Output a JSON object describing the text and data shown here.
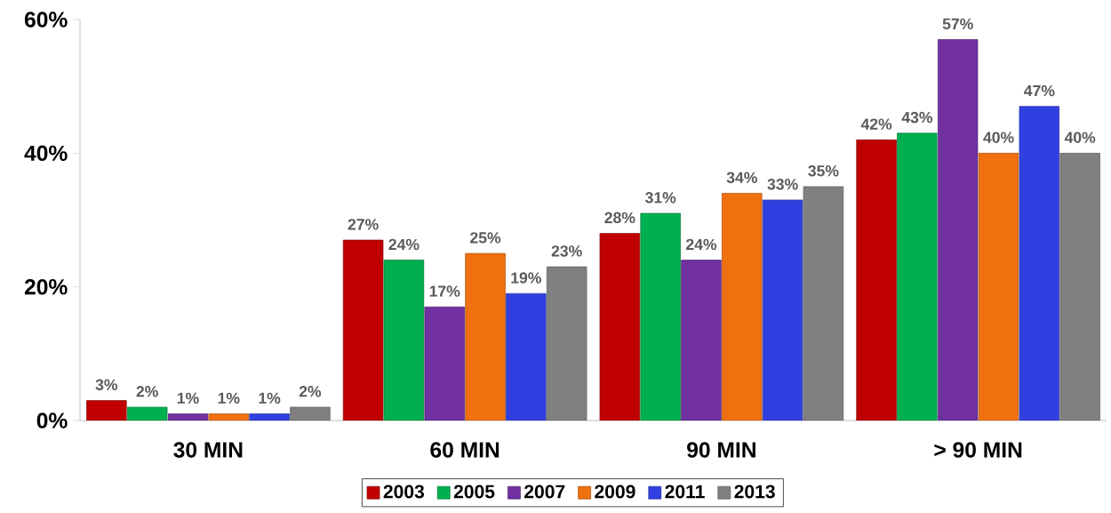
{
  "chart_data": {
    "type": "bar",
    "categories": [
      "30 MIN",
      "60 MIN",
      "90 MIN",
      "> 90 MIN"
    ],
    "series": [
      {
        "name": "2003",
        "color": "#c00000",
        "values": [
          3,
          27,
          28,
          42
        ],
        "value_labels": [
          "3%",
          "27%",
          "28%",
          "42%"
        ]
      },
      {
        "name": "2005",
        "color": "#00b050",
        "values": [
          2,
          24,
          31,
          43
        ],
        "value_labels": [
          "2%",
          "24%",
          "31%",
          "43%"
        ]
      },
      {
        "name": "2007",
        "color": "#7030a0",
        "values": [
          1,
          17,
          24,
          57
        ],
        "value_labels": [
          "1%",
          "17%",
          "24%",
          "57%"
        ]
      },
      {
        "name": "2009",
        "color": "#f07010",
        "values": [
          1,
          25,
          34,
          40
        ],
        "value_labels": [
          "1%",
          "25%",
          "34%",
          "40%"
        ]
      },
      {
        "name": "2011",
        "color": "#3040e0",
        "values": [
          1,
          19,
          33,
          47
        ],
        "value_labels": [
          "1%",
          "19%",
          "33%",
          "47%"
        ]
      },
      {
        "name": "2013",
        "color": "#808080",
        "values": [
          2,
          23,
          35,
          40
        ],
        "value_labels": [
          "2%",
          "23%",
          "35%",
          "40%"
        ]
      }
    ],
    "ylim": [
      0,
      60
    ],
    "yticks": [
      {
        "value": 0,
        "label": "0%"
      },
      {
        "value": 20,
        "label": "20%"
      },
      {
        "value": 40,
        "label": "40%"
      },
      {
        "value": 60,
        "label": "60%"
      }
    ],
    "legend": "bottom"
  }
}
